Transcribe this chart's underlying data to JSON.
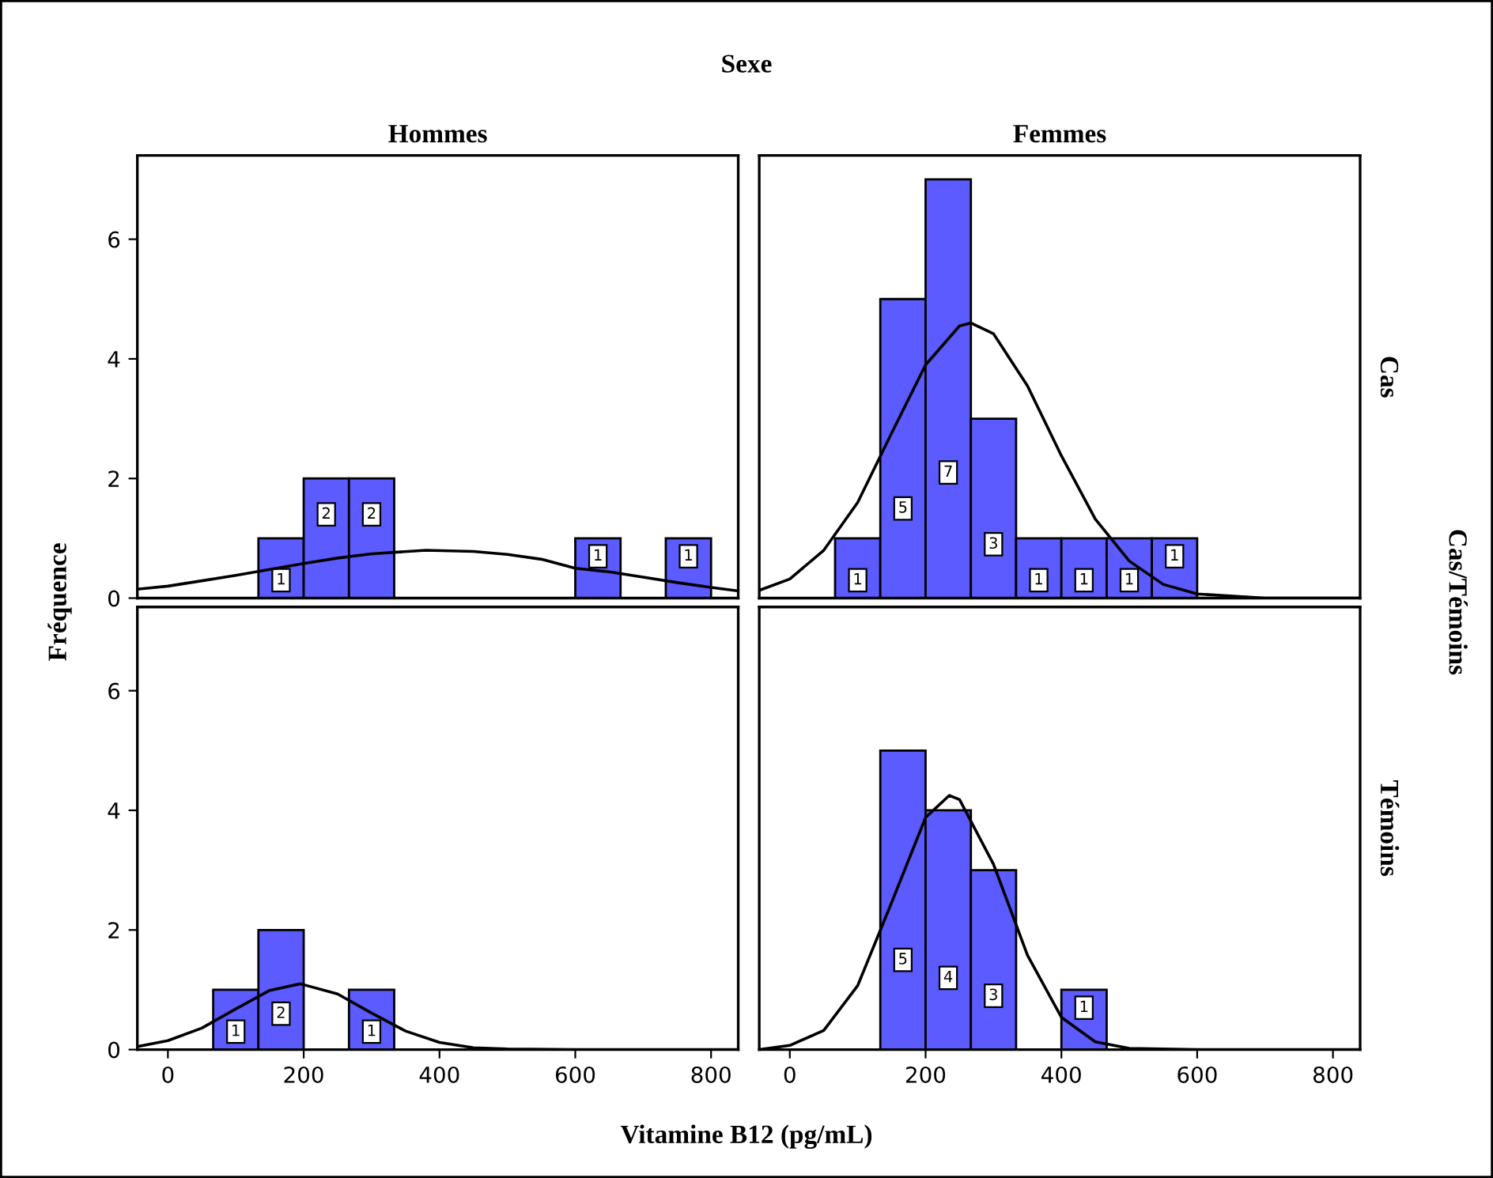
{
  "chart_data": [
    {
      "type": "histogram",
      "title": "Hommes",
      "ylabel": "Fréquence",
      "annotations": [
        "Sexe"
      ],
      "bins": [
        133.3,
        200,
        266.7,
        333.3,
        400,
        466.7,
        533.3,
        600,
        666.7,
        733.3,
        800
      ],
      "values": [
        1,
        2,
        2,
        0,
        0,
        0,
        0,
        1,
        0,
        1
      ],
      "value_labels": [
        "1",
        "2",
        "2",
        null,
        null,
        null,
        null,
        "1",
        null,
        "1"
      ],
      "color": "#5b5bff",
      "xlim": [
        -45,
        840
      ],
      "ylim": [
        0,
        7.4
      ],
      "xticks": [
        0,
        200,
        400,
        600,
        800
      ],
      "yticks": [
        0,
        2,
        4,
        6
      ],
      "tick_labels": "y",
      "series": [
        {
          "type": "line",
          "color": "#000000",
          "x": [
            -45,
            0,
            50,
            100,
            150,
            200,
            250,
            300,
            380,
            450,
            500,
            550,
            600,
            650,
            700,
            750,
            800,
            840
          ],
          "values": [
            0.15,
            0.2,
            0.29,
            0.38,
            0.48,
            0.58,
            0.67,
            0.74,
            0.8,
            0.78,
            0.73,
            0.65,
            0.5,
            0.44,
            0.35,
            0.26,
            0.18,
            0.12
          ]
        }
      ]
    },
    {
      "type": "histogram",
      "title": "Femmes",
      "annotations": [
        "Cas",
        "Cas/Témoins"
      ],
      "bins": [
        66.7,
        133.3,
        200,
        266.7,
        333.3,
        400,
        466.7,
        533.3,
        600
      ],
      "values": [
        1,
        5,
        7,
        3,
        1,
        1,
        1,
        1
      ],
      "value_labels": [
        "1",
        "5",
        "7",
        "3",
        "1",
        "1",
        "1",
        "1"
      ],
      "color": "#5b5bff",
      "xlim": [
        -45,
        840
      ],
      "ylim": [
        0,
        7.4
      ],
      "xticks": [
        0,
        200,
        400,
        600,
        800
      ],
      "yticks": [
        0,
        2,
        4,
        6
      ],
      "tick_labels": false,
      "series": [
        {
          "type": "line",
          "color": "#000000",
          "x": [
            -45,
            0,
            50,
            100,
            150,
            200,
            250,
            267,
            300,
            350,
            400,
            450,
            500,
            550,
            600,
            700,
            840
          ],
          "values": [
            0.13,
            0.32,
            0.8,
            1.6,
            2.76,
            3.9,
            4.55,
            4.6,
            4.42,
            3.55,
            2.38,
            1.32,
            0.62,
            0.23,
            0.07,
            0.0,
            0.0
          ]
        }
      ]
    },
    {
      "type": "histogram",
      "xlabel": "Vitamine B12 (pg/mL)",
      "bins": [
        66.7,
        133.3,
        200,
        266.7,
        333.3
      ],
      "values": [
        1,
        2,
        0,
        1
      ],
      "value_labels": [
        "1",
        "2",
        null,
        "1"
      ],
      "color": "#5b5bff",
      "xlim": [
        -45,
        840
      ],
      "ylim": [
        0,
        7.4
      ],
      "xticks": [
        0,
        200,
        400,
        600,
        800
      ],
      "yticks": [
        0,
        2,
        4,
        6
      ],
      "series": [
        {
          "type": "line",
          "color": "#000000",
          "x": [
            -45,
            0,
            50,
            100,
            150,
            195,
            250,
            300,
            350,
            400,
            450,
            500,
            600,
            840
          ],
          "values": [
            0.05,
            0.15,
            0.36,
            0.68,
            0.99,
            1.1,
            0.93,
            0.61,
            0.31,
            0.12,
            0.03,
            0.01,
            0.0,
            0.0
          ]
        }
      ]
    },
    {
      "type": "histogram",
      "annotations": [
        "Témoins"
      ],
      "bins": [
        133.3,
        200,
        266.7,
        333.3,
        400,
        466.7
      ],
      "values": [
        5,
        4,
        3,
        0,
        1
      ],
      "value_labels": [
        "5",
        "4",
        "3",
        null,
        "1"
      ],
      "color": "#5b5bff",
      "xlim": [
        -45,
        840
      ],
      "ylim": [
        0,
        7.4
      ],
      "xticks": [
        0,
        200,
        400,
        600,
        800
      ],
      "yticks": [
        0,
        2,
        4,
        6
      ],
      "tick_labels": "x",
      "series": [
        {
          "type": "line",
          "color": "#000000",
          "x": [
            -45,
            0,
            50,
            100,
            150,
            200,
            235,
            250,
            300,
            350,
            400,
            450,
            500,
            600,
            840
          ],
          "values": [
            0.0,
            0.07,
            0.32,
            1.07,
            2.46,
            3.88,
            4.25,
            4.18,
            3.1,
            1.58,
            0.54,
            0.13,
            0.02,
            0.0,
            0.0
          ]
        }
      ]
    }
  ]
}
